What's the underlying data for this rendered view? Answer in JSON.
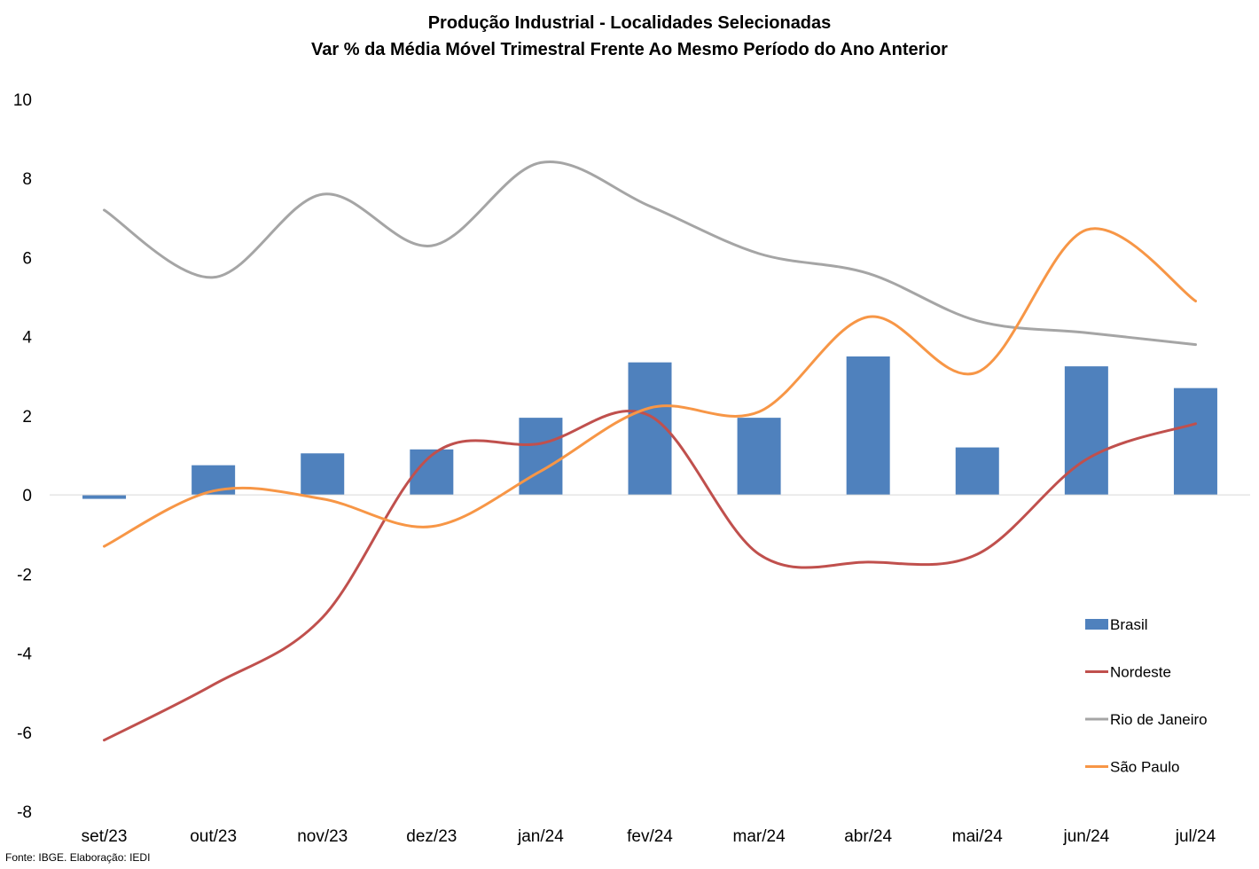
{
  "chart_data": {
    "type": "bar",
    "title": "Produção Industrial - Localidades Selecionadas",
    "subtitle": "Var % da Média Móvel Trimestral Frente Ao Mesmo Período do Ano Anterior",
    "categories": [
      "set/23",
      "out/23",
      "nov/23",
      "dez/23",
      "jan/24",
      "fev/24",
      "mar/24",
      "abr/24",
      "mai/24",
      "jun/24",
      "jul/24"
    ],
    "y_ticks": [
      "10",
      "8",
      "6",
      "4",
      "2",
      "0",
      "-2",
      "-4",
      "-6",
      "-8"
    ],
    "ylim": [
      -8,
      10
    ],
    "grid": false,
    "legend_position": "right",
    "series": [
      {
        "name": "Brasil",
        "kind": "bar",
        "color": "#4F81BD",
        "values": [
          -0.1,
          0.75,
          1.05,
          1.15,
          1.95,
          3.35,
          1.95,
          3.5,
          1.2,
          3.25,
          2.7
        ]
      },
      {
        "name": "Nordeste",
        "kind": "line",
        "color": "#C0504D",
        "values": [
          -6.2,
          -4.8,
          -3.1,
          1.0,
          1.3,
          2.0,
          -1.5,
          -1.7,
          -1.5,
          0.9,
          1.8
        ]
      },
      {
        "name": "Rio de Janeiro",
        "kind": "line",
        "color": "#A5A5A5",
        "values": [
          7.2,
          5.5,
          7.6,
          6.3,
          8.4,
          7.3,
          6.1,
          5.6,
          4.4,
          4.1,
          3.8
        ]
      },
      {
        "name": "São Paulo",
        "kind": "line",
        "color": "#F79646",
        "values": [
          -1.3,
          0.1,
          -0.1,
          -0.8,
          0.6,
          2.2,
          2.1,
          4.5,
          3.1,
          6.7,
          4.9
        ]
      }
    ],
    "source": "Fonte: IBGE. Elaboração: IEDI"
  }
}
